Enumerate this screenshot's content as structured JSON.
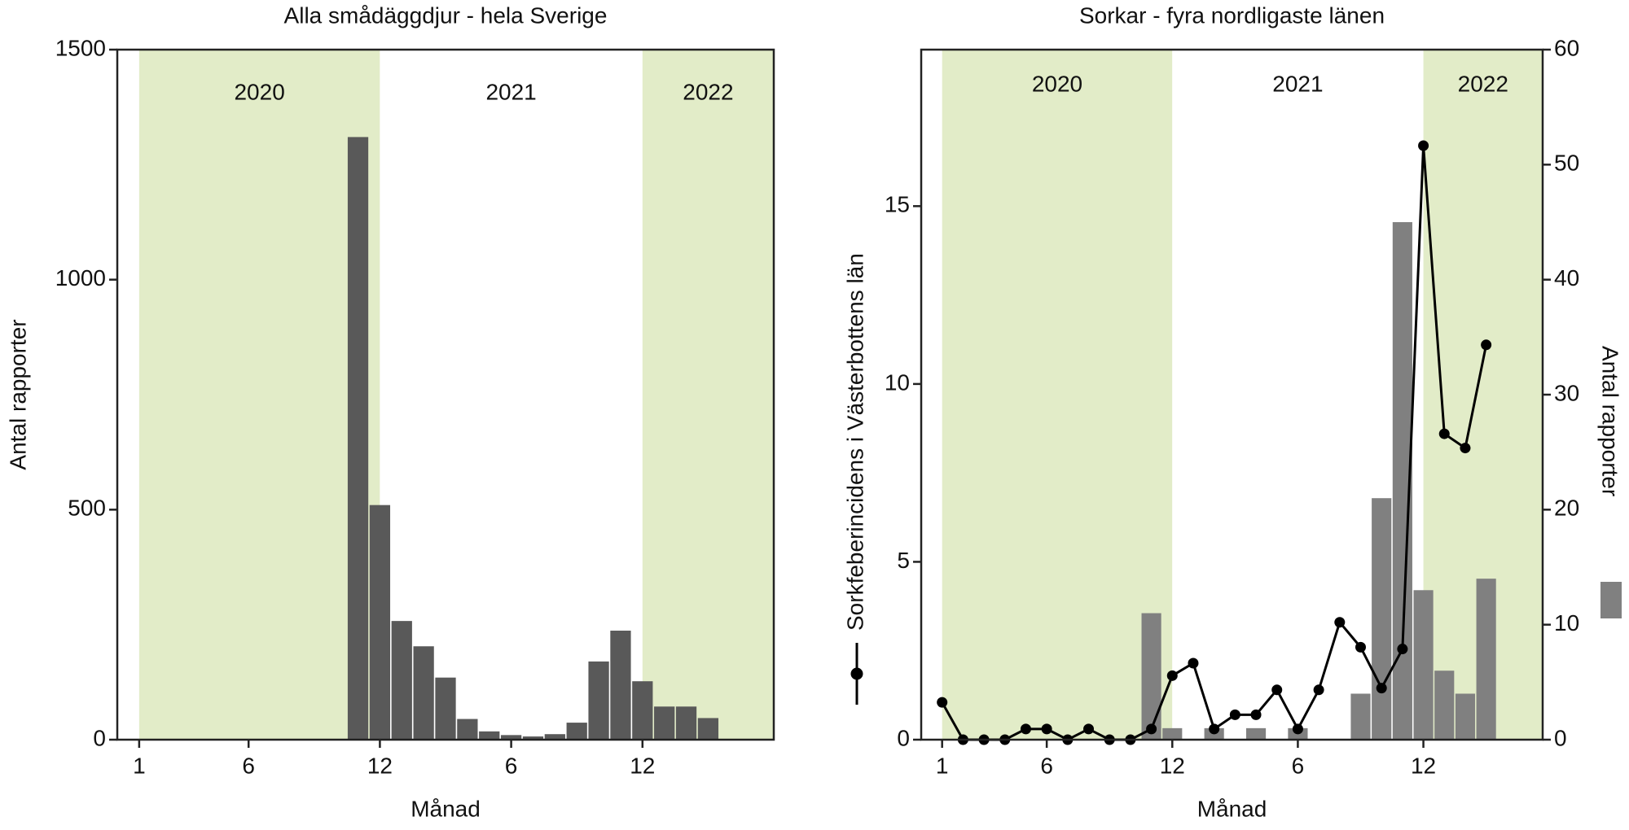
{
  "chart_data": [
    {
      "type": "bar",
      "title": "Alla smådäggdjur - hela Sverige",
      "xlabel": "Månad",
      "ylabel": "Antal rapporter",
      "x": [
        11,
        12,
        13,
        14,
        15,
        16,
        17,
        18,
        19,
        20,
        21,
        22,
        23,
        24,
        25,
        26,
        27
      ],
      "values": [
        1310,
        510,
        258,
        203,
        135,
        45,
        18,
        10,
        7,
        12,
        37,
        170,
        237,
        127,
        72,
        72,
        47
      ],
      "color": "#595959",
      "xlim": [
        0,
        30
      ],
      "xticks": [
        1,
        6,
        12,
        {
          "value": 18,
          "label": "6"
        },
        {
          "value": 24,
          "label": "12"
        }
      ],
      "ylim": [
        0,
        1500
      ],
      "yticks": [
        0,
        500,
        1000,
        1500
      ],
      "periods": [
        {
          "label": "2020",
          "start": 1,
          "end": 12,
          "color": "#e2ecc8"
        },
        {
          "label": "2021",
          "start": 12,
          "end": 24,
          "color": "#ffffff"
        },
        {
          "label": "2022",
          "start": 24,
          "end": 30,
          "color": "#e2ecc8"
        }
      ]
    },
    {
      "type": "bar_line",
      "title": "Sorkar - fyra nordligaste länen",
      "xlabel": "Månad",
      "series": [
        {
          "name": "Sorkfeberincidens i Västerbottens län",
          "type": "line",
          "color": "#000000",
          "x": [
            1,
            2,
            3,
            4,
            5,
            6,
            7,
            8,
            9,
            10,
            11,
            12,
            13,
            14,
            15,
            16,
            17,
            18,
            19,
            20,
            21,
            22,
            23,
            24,
            25,
            26,
            27
          ],
          "values": [
            1.05,
            0,
            0,
            0,
            0.3,
            0.3,
            0,
            0.3,
            0,
            0,
            0.3,
            1.8,
            2.15,
            0.3,
            0.7,
            0.7,
            1.4,
            0.3,
            1.4,
            3.3,
            2.6,
            1.45,
            2.55,
            16.7,
            8.6,
            8.2,
            11.1
          ]
        },
        {
          "name": "Antal rapporter",
          "type": "bar",
          "axis": "y2",
          "color": "#808080",
          "x": [
            11,
            12,
            14,
            16,
            18,
            21,
            22,
            23,
            24,
            25,
            26,
            27
          ],
          "values": [
            11,
            1,
            1,
            1,
            1,
            4,
            21,
            45,
            13,
            6,
            4,
            14
          ]
        }
      ],
      "xlim": [
        0,
        29.7
      ],
      "xticks": [
        1,
        6,
        12,
        {
          "value": 18,
          "label": "6"
        },
        {
          "value": 24,
          "label": "12"
        }
      ],
      "ylim": [
        0,
        19.4
      ],
      "yticks": [
        0,
        5,
        10,
        15
      ],
      "y2lim": [
        0,
        60
      ],
      "y2ticks": [
        0,
        10,
        20,
        30,
        40,
        50,
        60
      ],
      "periods": [
        {
          "label": "2020",
          "start": 1,
          "end": 12,
          "color": "#e2ecc8"
        },
        {
          "label": "2021",
          "start": 12,
          "end": 24,
          "color": "#ffffff"
        },
        {
          "label": "2022",
          "start": 24,
          "end": 29.7,
          "color": "#e2ecc8"
        }
      ]
    }
  ]
}
